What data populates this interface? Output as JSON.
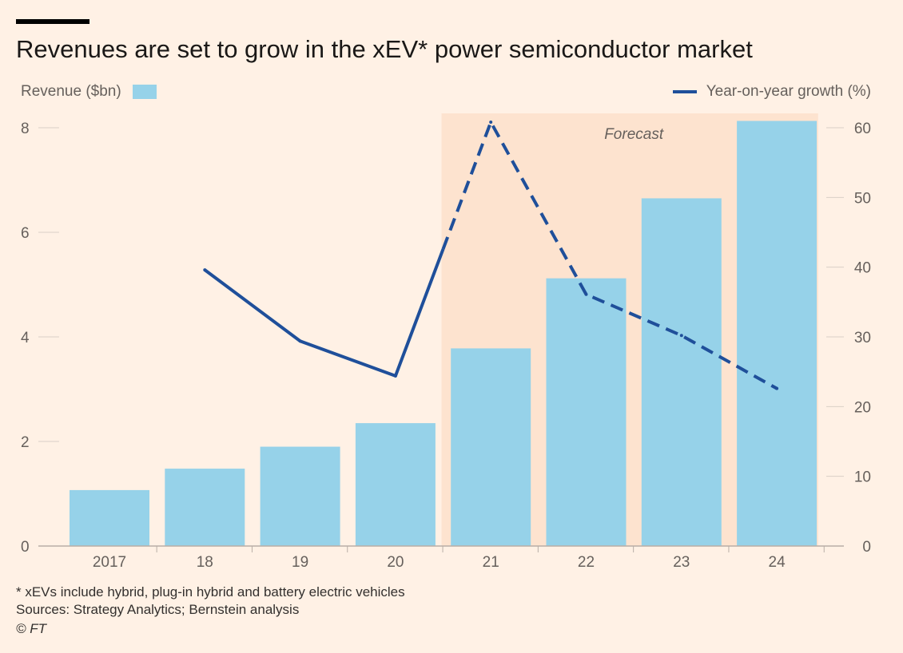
{
  "title": "Revenues are set to grow in the xEV* power semiconductor market",
  "legend": {
    "left_label": "Revenue ($bn)",
    "right_label": "Year-on-year growth (%)"
  },
  "forecast_label": "Forecast",
  "colors": {
    "bar": "#96d2e9",
    "line": "#1f4f9a",
    "forecast_bg": "#fde3cf",
    "background": "#fff1e5"
  },
  "footnotes": {
    "note": "* xEVs include hybrid,  plug-in hybrid and battery electric vehicles",
    "sources": "Sources: Strategy Analytics; Bernstein analysis",
    "credit": "© FT"
  },
  "chart_data": {
    "type": "bar",
    "categories": [
      "2017",
      "18",
      "19",
      "20",
      "21",
      "22",
      "23",
      "24"
    ],
    "series": [
      {
        "name": "Revenue ($bn)",
        "type": "bar",
        "axis": "left",
        "values": [
          1.07,
          1.48,
          1.9,
          2.35,
          3.78,
          5.12,
          6.65,
          8.13
        ]
      },
      {
        "name": "Year-on-year growth (%)",
        "type": "line",
        "axis": "right",
        "values": [
          null,
          39.6,
          29.4,
          24.4,
          60.8,
          36.1,
          30.2,
          22.6
        ],
        "forecast_from_index": 4
      }
    ],
    "forecast_categories": [
      "21",
      "22",
      "23",
      "24"
    ],
    "y_left": {
      "ylim": [
        0,
        8
      ],
      "ticks": [
        0,
        2,
        4,
        6,
        8
      ]
    },
    "y_right": {
      "ylim": [
        0,
        60
      ],
      "ticks": [
        0,
        10,
        20,
        30,
        40,
        50,
        60
      ]
    },
    "legend_placement": "top",
    "grid": false
  }
}
